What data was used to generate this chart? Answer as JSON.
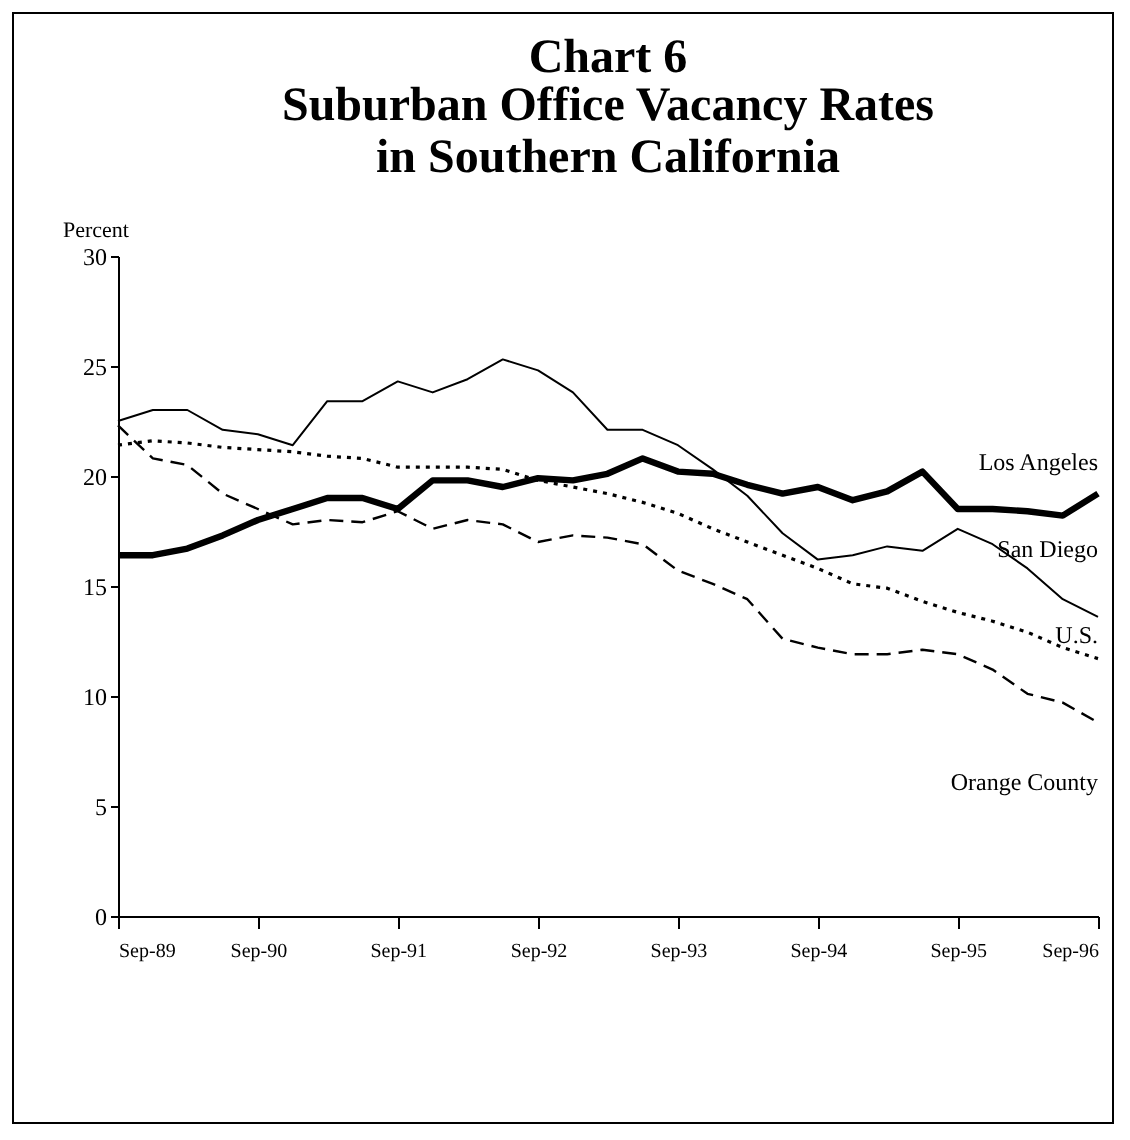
{
  "chart_data": {
    "type": "line",
    "title": "Chart 6",
    "subtitle": "Suburban Office Vacancy Rates in Southern California",
    "ylabel": "Percent",
    "x": [
      "1989-09",
      "1989-12",
      "1990-03",
      "1990-06",
      "1990-09",
      "1990-12",
      "1991-03",
      "1991-06",
      "1991-09",
      "1991-12",
      "1992-03",
      "1992-06",
      "1992-09",
      "1992-12",
      "1993-03",
      "1993-06",
      "1993-09",
      "1993-12",
      "1994-03",
      "1994-06",
      "1994-09",
      "1994-12",
      "1995-03",
      "1995-06",
      "1995-09",
      "1995-12",
      "1996-03",
      "1996-06",
      "1996-09"
    ],
    "xlim": [
      "1989-09",
      "1996-09"
    ],
    "xticks": [
      {
        "value": "1989-09",
        "label": "Sep-89"
      },
      {
        "value": "1990-09",
        "label": "Sep-90"
      },
      {
        "value": "1991-09",
        "label": "Sep-91"
      },
      {
        "value": "1992-09",
        "label": "Sep-92"
      },
      {
        "value": "1993-09",
        "label": "Sep-93"
      },
      {
        "value": "1994-09",
        "label": "Sep-94"
      },
      {
        "value": "1995-09",
        "label": "Sep-95"
      },
      {
        "value": "1996-09",
        "label": "Sep-96"
      }
    ],
    "ylim": [
      0,
      30
    ],
    "yticks": [
      0,
      5,
      10,
      15,
      20,
      25,
      30
    ],
    "grid": false,
    "marker": "none",
    "series": [
      {
        "name": "Los Angeles",
        "color": "#000000",
        "line_style": "solid",
        "values": [
          16.4,
          16.4,
          16.7,
          17.3,
          18.0,
          18.5,
          19.0,
          19.0,
          18.5,
          19.8,
          19.8,
          19.5,
          19.9,
          19.8,
          20.1,
          20.8,
          20.2,
          20.1,
          19.6,
          19.2,
          19.5,
          18.9,
          19.3,
          20.2,
          18.5,
          18.5,
          18.4,
          18.2,
          19.2
        ]
      },
      {
        "name": "San Diego",
        "color": "#000000",
        "line_style": "solid",
        "values": [
          22.5,
          23.0,
          23.0,
          22.1,
          21.9,
          21.4,
          23.4,
          23.4,
          24.3,
          23.8,
          24.4,
          25.3,
          24.8,
          23.8,
          22.1,
          22.1,
          21.4,
          20.3,
          19.1,
          17.4,
          16.2,
          16.4,
          16.8,
          16.6,
          17.6,
          16.9,
          15.8,
          14.4,
          13.6
        ]
      },
      {
        "name": "U.S.",
        "color": "#000000",
        "line_style": "dotted",
        "values": [
          21.4,
          21.6,
          21.5,
          21.3,
          21.2,
          21.1,
          20.9,
          20.8,
          20.4,
          20.4,
          20.4,
          20.3,
          19.8,
          19.5,
          19.2,
          18.8,
          18.3,
          17.6,
          17.0,
          16.4,
          15.8,
          15.1,
          14.9,
          14.3,
          13.8,
          13.4,
          12.9,
          12.2,
          11.7
        ]
      },
      {
        "name": "Orange County",
        "color": "#000000",
        "line_style": "dashed",
        "values": [
          22.3,
          20.8,
          20.5,
          19.2,
          18.5,
          17.8,
          18.0,
          17.9,
          18.4,
          17.6,
          18.0,
          17.8,
          17.0,
          17.3,
          17.2,
          16.9,
          15.7,
          15.1,
          14.4,
          12.6,
          12.2,
          11.9,
          11.9,
          12.1,
          11.9,
          11.2,
          10.1,
          9.7,
          8.8
        ]
      }
    ]
  }
}
